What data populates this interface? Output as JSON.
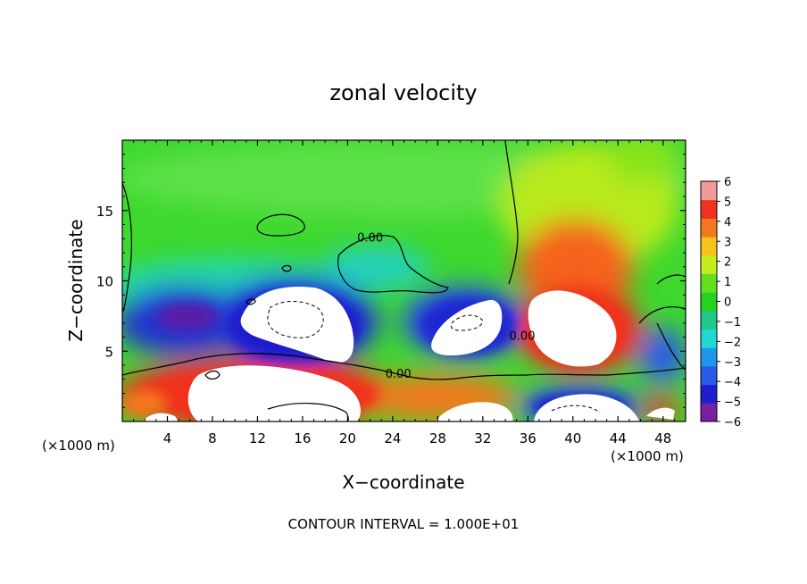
{
  "chart_data": {
    "type": "heatmap",
    "title": "zonal velocity",
    "xlabel": "X−coordinate",
    "ylabel": "Z−coordinate",
    "x_unit_label": "(×1000 m)",
    "z_unit_label": "(×1000 m)",
    "footer": "CONTOUR INTERVAL = 1.000E+01",
    "xlim": [
      0,
      50
    ],
    "ylim": [
      0,
      20
    ],
    "x_ticks": [
      4,
      8,
      12,
      16,
      20,
      24,
      28,
      32,
      36,
      40,
      44,
      48
    ],
    "x_tick_labels": [
      "4",
      "8",
      "12",
      "16",
      "20",
      "24",
      "28",
      "32",
      "36",
      "40",
      "44",
      "48"
    ],
    "y_ticks": [
      5,
      10,
      15
    ],
    "y_tick_labels": [
      "5",
      "10",
      "15"
    ],
    "colorbar": {
      "levels": [
        -6,
        -5,
        -4,
        -3,
        -2,
        -1,
        0,
        1,
        2,
        3,
        4,
        5,
        6
      ],
      "labels": [
        "−6",
        "−5",
        "−4",
        "−3",
        "−2",
        "−1",
        "0",
        "1",
        "2",
        "3",
        "4",
        "5",
        "6"
      ],
      "colors": [
        "#7a1fa2",
        "#1e1ecc",
        "#2a5ae6",
        "#1e96ee",
        "#1ed8d2",
        "#1ec88a",
        "#26d21e",
        "#62e01e",
        "#c2ee1e",
        "#f5c31e",
        "#f5781e",
        "#f0321e",
        "#f09a9a"
      ]
    },
    "contour_labels": [
      {
        "text": "0.00",
        "x": 22,
        "z": 12.8
      },
      {
        "text": "0.00",
        "x": 24.5,
        "z": 3.1
      },
      {
        "text": "0.00",
        "x": 35.5,
        "z": 5.8
      }
    ],
    "background_value": 0.5,
    "features": [
      {
        "sign": "negative",
        "cx": 7,
        "cz": 7.2,
        "amplitude": -5.5
      },
      {
        "sign": "negative",
        "cx": 17,
        "cz": 7.2,
        "amplitude": -8
      },
      {
        "sign": "negative",
        "cx": 32,
        "cz": 7.0,
        "amplitude": -8
      },
      {
        "sign": "positive",
        "cx": 41,
        "cz": 7.5,
        "amplitude": 9
      },
      {
        "sign": "positive",
        "cx": 41,
        "cz": 11.0,
        "amplitude": 5
      },
      {
        "sign": "positive",
        "cx": 12,
        "cz": 2.0,
        "amplitude": 9
      },
      {
        "sign": "negative",
        "cx": 40,
        "cz": 1.0,
        "amplitude": -7
      },
      {
        "sign": "negative",
        "cx": 48,
        "cz": 4.0,
        "amplitude": -4.5
      }
    ]
  }
}
